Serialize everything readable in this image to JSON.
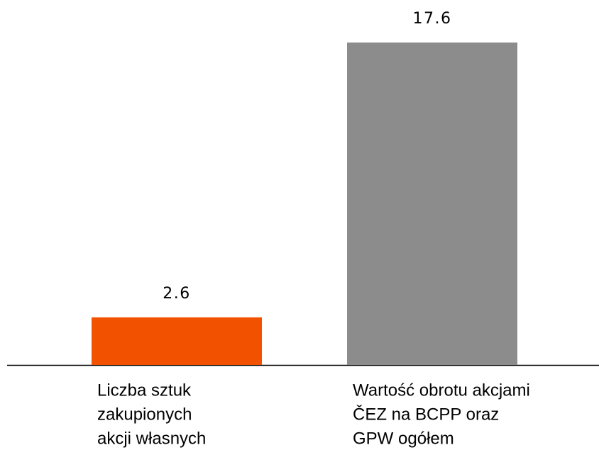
{
  "chart_data": {
    "type": "bar",
    "categories": [
      [
        "Liczba sztuk",
        "zakupionych",
        "akcji własnych"
      ],
      [
        "Wartość obrotu akcjami",
        "ČEZ na BCPP oraz",
        "GPW ogółem"
      ]
    ],
    "values": [
      2.6,
      17.6
    ],
    "colors": [
      "#f25100",
      "#8c8c8c"
    ]
  }
}
